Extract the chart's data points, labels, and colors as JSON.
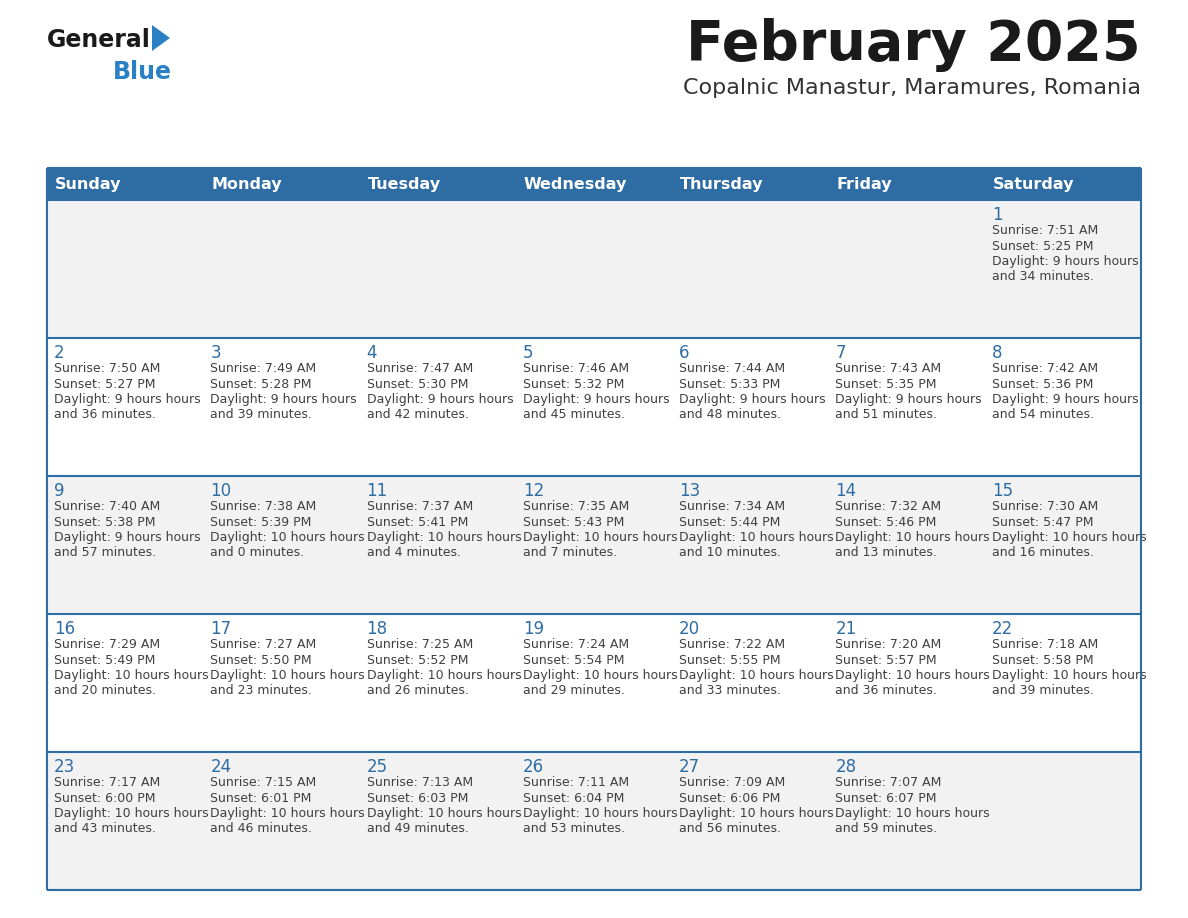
{
  "title": "February 2025",
  "subtitle": "Copalnic Manastur, Maramures, Romania",
  "days_of_week": [
    "Sunday",
    "Monday",
    "Tuesday",
    "Wednesday",
    "Thursday",
    "Friday",
    "Saturday"
  ],
  "header_bg": "#2E6DA4",
  "header_text": "#FFFFFF",
  "row_bg_odd": "#F2F2F2",
  "row_bg_even": "#FFFFFF",
  "separator_color": "#2E6DA4",
  "day_number_color": "#2E6DA4",
  "cell_text_color": "#404040",
  "title_color": "#1A1A1A",
  "subtitle_color": "#333333",
  "logo_general_color": "#1A1A1A",
  "logo_blue_color": "#2980C4",
  "weeks": [
    [
      {
        "day": null,
        "sunrise": null,
        "sunset": null,
        "daylight": null
      },
      {
        "day": null,
        "sunrise": null,
        "sunset": null,
        "daylight": null
      },
      {
        "day": null,
        "sunrise": null,
        "sunset": null,
        "daylight": null
      },
      {
        "day": null,
        "sunrise": null,
        "sunset": null,
        "daylight": null
      },
      {
        "day": null,
        "sunrise": null,
        "sunset": null,
        "daylight": null
      },
      {
        "day": null,
        "sunrise": null,
        "sunset": null,
        "daylight": null
      },
      {
        "day": 1,
        "sunrise": "7:51 AM",
        "sunset": "5:25 PM",
        "daylight": "9 hours and 34 minutes."
      }
    ],
    [
      {
        "day": 2,
        "sunrise": "7:50 AM",
        "sunset": "5:27 PM",
        "daylight": "9 hours and 36 minutes."
      },
      {
        "day": 3,
        "sunrise": "7:49 AM",
        "sunset": "5:28 PM",
        "daylight": "9 hours and 39 minutes."
      },
      {
        "day": 4,
        "sunrise": "7:47 AM",
        "sunset": "5:30 PM",
        "daylight": "9 hours and 42 minutes."
      },
      {
        "day": 5,
        "sunrise": "7:46 AM",
        "sunset": "5:32 PM",
        "daylight": "9 hours and 45 minutes."
      },
      {
        "day": 6,
        "sunrise": "7:44 AM",
        "sunset": "5:33 PM",
        "daylight": "9 hours and 48 minutes."
      },
      {
        "day": 7,
        "sunrise": "7:43 AM",
        "sunset": "5:35 PM",
        "daylight": "9 hours and 51 minutes."
      },
      {
        "day": 8,
        "sunrise": "7:42 AM",
        "sunset": "5:36 PM",
        "daylight": "9 hours and 54 minutes."
      }
    ],
    [
      {
        "day": 9,
        "sunrise": "7:40 AM",
        "sunset": "5:38 PM",
        "daylight": "9 hours and 57 minutes."
      },
      {
        "day": 10,
        "sunrise": "7:38 AM",
        "sunset": "5:39 PM",
        "daylight": "10 hours and 0 minutes."
      },
      {
        "day": 11,
        "sunrise": "7:37 AM",
        "sunset": "5:41 PM",
        "daylight": "10 hours and 4 minutes."
      },
      {
        "day": 12,
        "sunrise": "7:35 AM",
        "sunset": "5:43 PM",
        "daylight": "10 hours and 7 minutes."
      },
      {
        "day": 13,
        "sunrise": "7:34 AM",
        "sunset": "5:44 PM",
        "daylight": "10 hours and 10 minutes."
      },
      {
        "day": 14,
        "sunrise": "7:32 AM",
        "sunset": "5:46 PM",
        "daylight": "10 hours and 13 minutes."
      },
      {
        "day": 15,
        "sunrise": "7:30 AM",
        "sunset": "5:47 PM",
        "daylight": "10 hours and 16 minutes."
      }
    ],
    [
      {
        "day": 16,
        "sunrise": "7:29 AM",
        "sunset": "5:49 PM",
        "daylight": "10 hours and 20 minutes."
      },
      {
        "day": 17,
        "sunrise": "7:27 AM",
        "sunset": "5:50 PM",
        "daylight": "10 hours and 23 minutes."
      },
      {
        "day": 18,
        "sunrise": "7:25 AM",
        "sunset": "5:52 PM",
        "daylight": "10 hours and 26 minutes."
      },
      {
        "day": 19,
        "sunrise": "7:24 AM",
        "sunset": "5:54 PM",
        "daylight": "10 hours and 29 minutes."
      },
      {
        "day": 20,
        "sunrise": "7:22 AM",
        "sunset": "5:55 PM",
        "daylight": "10 hours and 33 minutes."
      },
      {
        "day": 21,
        "sunrise": "7:20 AM",
        "sunset": "5:57 PM",
        "daylight": "10 hours and 36 minutes."
      },
      {
        "day": 22,
        "sunrise": "7:18 AM",
        "sunset": "5:58 PM",
        "daylight": "10 hours and 39 minutes."
      }
    ],
    [
      {
        "day": 23,
        "sunrise": "7:17 AM",
        "sunset": "6:00 PM",
        "daylight": "10 hours and 43 minutes."
      },
      {
        "day": 24,
        "sunrise": "7:15 AM",
        "sunset": "6:01 PM",
        "daylight": "10 hours and 46 minutes."
      },
      {
        "day": 25,
        "sunrise": "7:13 AM",
        "sunset": "6:03 PM",
        "daylight": "10 hours and 49 minutes."
      },
      {
        "day": 26,
        "sunrise": "7:11 AM",
        "sunset": "6:04 PM",
        "daylight": "10 hours and 53 minutes."
      },
      {
        "day": 27,
        "sunrise": "7:09 AM",
        "sunset": "6:06 PM",
        "daylight": "10 hours and 56 minutes."
      },
      {
        "day": 28,
        "sunrise": "7:07 AM",
        "sunset": "6:07 PM",
        "daylight": "10 hours and 59 minutes."
      },
      {
        "day": null,
        "sunrise": null,
        "sunset": null,
        "daylight": null
      }
    ]
  ]
}
